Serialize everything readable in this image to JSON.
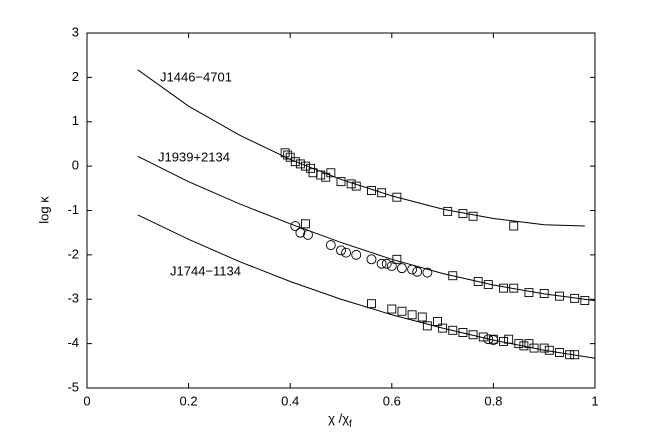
{
  "chart_data": {
    "type": "scatter",
    "xlabel": "χ /χ",
    "xlabel_sub": "f",
    "ylabel": "log κ",
    "xlim": [
      0,
      1
    ],
    "ylim": [
      -5,
      3
    ],
    "xticks": [
      0,
      0.2,
      0.4,
      0.6,
      0.8,
      1
    ],
    "yticks": [
      -5,
      -4,
      -3,
      -2,
      -1,
      0,
      1,
      2,
      3
    ],
    "annotations": [
      "J1446−4701",
      "J1939+2134",
      "J1744−1134"
    ],
    "series": [
      {
        "kind": "line",
        "color": "#000000",
        "x": [
          0.1,
          0.2,
          0.3,
          0.4,
          0.5,
          0.6,
          0.7,
          0.8,
          0.9,
          0.98
        ],
        "values": [
          2.17,
          1.35,
          0.7,
          0.15,
          -0.3,
          -0.67,
          -0.97,
          -1.18,
          -1.32,
          -1.35
        ]
      },
      {
        "kind": "line",
        "color": "#000000",
        "x": [
          0.1,
          0.2,
          0.3,
          0.4,
          0.5,
          0.6,
          0.7,
          0.8,
          0.9,
          1.0
        ],
        "values": [
          0.22,
          -0.35,
          -0.85,
          -1.3,
          -1.72,
          -2.1,
          -2.42,
          -2.68,
          -2.88,
          -3.03
        ]
      },
      {
        "kind": "line",
        "color": "#000000",
        "x": [
          0.1,
          0.2,
          0.3,
          0.4,
          0.5,
          0.6,
          0.7,
          0.8,
          0.9,
          1.0
        ],
        "values": [
          -1.1,
          -1.65,
          -2.15,
          -2.6,
          -3.0,
          -3.35,
          -3.65,
          -3.92,
          -4.15,
          -4.33
        ]
      },
      {
        "kind": "points",
        "marker": "square",
        "color": "#000000",
        "x": [
          0.39,
          0.395,
          0.4,
          0.41,
          0.42,
          0.43,
          0.44,
          0.445,
          0.46,
          0.47,
          0.48,
          0.5,
          0.52,
          0.53,
          0.56,
          0.58,
          0.61,
          0.71,
          0.74,
          0.76,
          0.84
        ],
        "values": [
          0.3,
          0.25,
          0.2,
          0.1,
          0.05,
          0.0,
          -0.05,
          -0.15,
          -0.2,
          -0.25,
          -0.15,
          -0.35,
          -0.4,
          -0.45,
          -0.55,
          -0.6,
          -0.7,
          -1.02,
          -1.07,
          -1.13,
          -1.35
        ]
      },
      {
        "kind": "points",
        "marker": "circle",
        "color": "#000000",
        "x": [
          0.41,
          0.42,
          0.435,
          0.48,
          0.5,
          0.51,
          0.53,
          0.56,
          0.58,
          0.59,
          0.6,
          0.62,
          0.64,
          0.65,
          0.67,
          0.79,
          0.8
        ],
        "values": [
          -1.35,
          -1.5,
          -1.55,
          -1.78,
          -1.9,
          -1.95,
          -2.0,
          -2.1,
          -2.2,
          -2.2,
          -2.25,
          -2.3,
          -2.33,
          -2.38,
          -2.4,
          -3.9,
          -3.92
        ]
      },
      {
        "kind": "points",
        "marker": "square",
        "color": "#000000",
        "x": [
          0.43,
          0.61,
          0.72,
          0.77,
          0.79,
          0.82,
          0.84,
          0.87,
          0.9,
          0.93,
          0.96,
          0.98
        ],
        "values": [
          -1.3,
          -2.1,
          -2.47,
          -2.6,
          -2.67,
          -2.75,
          -2.75,
          -2.85,
          -2.87,
          -2.93,
          -2.98,
          -3.03
        ]
      },
      {
        "kind": "points",
        "marker": "square",
        "color": "#000000",
        "x": [
          0.56,
          0.6,
          0.62,
          0.64,
          0.66,
          0.67,
          0.69,
          0.7,
          0.72,
          0.74,
          0.76,
          0.78,
          0.8,
          0.82,
          0.83,
          0.85,
          0.86,
          0.87,
          0.88,
          0.9,
          0.91,
          0.93,
          0.95,
          0.96
        ],
        "values": [
          -3.1,
          -3.22,
          -3.27,
          -3.35,
          -3.4,
          -3.6,
          -3.5,
          -3.65,
          -3.7,
          -3.75,
          -3.8,
          -3.85,
          -3.9,
          -3.95,
          -3.9,
          -4.0,
          -4.05,
          -4.0,
          -4.1,
          -4.1,
          -4.15,
          -4.2,
          -4.25,
          -4.25
        ]
      }
    ]
  }
}
